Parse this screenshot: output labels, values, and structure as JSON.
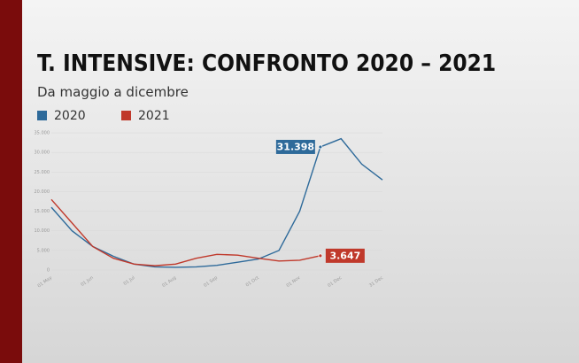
{
  "chart_data": {
    "type": "line",
    "title": "T. INTENSIVE: CONFRONTO 2020 – 2021",
    "subtitle": "Da maggio a dicembre",
    "categories": [
      "01 May",
      null,
      "01 Jun",
      null,
      "01 Jul",
      null,
      "01 Aug",
      null,
      "01 Sep",
      null,
      "01 Oct",
      null,
      "01 Nov",
      null,
      "01 Dec",
      null,
      "31 Dec"
    ],
    "series": [
      {
        "name": "2020",
        "color": "#2e6a9a",
        "values": [
          16000,
          10000,
          6000,
          3500,
          1500,
          800,
          700,
          800,
          1200,
          2000,
          2800,
          5000,
          15000,
          31398,
          33500,
          27000,
          23000
        ],
        "value_labels": [
          null,
          null,
          null,
          null,
          null,
          null,
          null,
          null,
          null,
          null,
          null,
          null,
          null,
          "31.398",
          null,
          null,
          null
        ]
      },
      {
        "name": "2021",
        "color": "#c0392b",
        "values": [
          18000,
          12000,
          6000,
          3000,
          1500,
          1100,
          1500,
          3000,
          4000,
          3800,
          3000,
          2300,
          2500,
          3647,
          null,
          null,
          null
        ],
        "value_labels": [
          null,
          null,
          null,
          null,
          null,
          null,
          null,
          null,
          null,
          null,
          null,
          null,
          null,
          "3.647",
          null,
          null,
          null
        ]
      }
    ],
    "ylim": [
      0,
      35000
    ],
    "yticks": [
      0,
      {
        "value": 5000,
        "label": "5.000"
      },
      {
        "value": 10000,
        "label": "10.000"
      },
      {
        "value": 15000,
        "label": "15.000"
      },
      {
        "value": 20000,
        "label": "20.000"
      },
      {
        "value": 25000,
        "label": "25.000"
      },
      {
        "value": 30000,
        "label": "30.000"
      },
      {
        "value": 35000,
        "label": "35.000"
      }
    ],
    "grid": true
  }
}
